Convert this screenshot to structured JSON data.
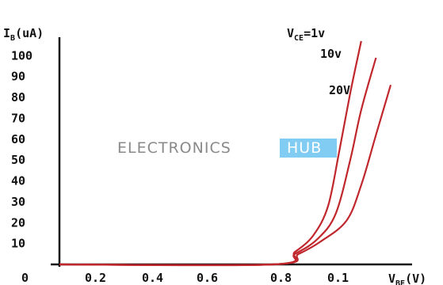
{
  "chart_data": {
    "type": "line",
    "y_axis": {
      "label_main": "I",
      "label_sub": "B",
      "label_unit": "(uA)",
      "ticks": [
        "0",
        "10",
        "20",
        "30",
        "40",
        "50",
        "60",
        "70",
        "80",
        "90",
        "100"
      ]
    },
    "x_axis": {
      "label_main": "V",
      "label_sub": "BE",
      "label_unit": "(V)",
      "ticks": [
        "0.2",
        "0.4",
        "0.6",
        "0.8",
        "0.1"
      ]
    },
    "xlim": [
      0,
      1.04
    ],
    "ylim": [
      0,
      110
    ],
    "grid": false,
    "series": [
      {
        "name_main": "V",
        "name_sub": "CE",
        "name_value": "=1v",
        "points": [
          [
            0,
            0
          ],
          [
            0.58,
            0
          ],
          [
            0.64,
            6
          ],
          [
            0.69,
            14
          ],
          [
            0.73,
            28
          ],
          [
            0.76,
            54
          ],
          [
            0.79,
            82
          ],
          [
            0.82,
            107
          ]
        ]
      },
      {
        "name_main": "",
        "name_sub": "",
        "name_value": "10v",
        "points": [
          [
            0,
            0
          ],
          [
            0.58,
            0
          ],
          [
            0.64,
            5
          ],
          [
            0.7,
            12
          ],
          [
            0.75,
            24
          ],
          [
            0.79,
            50
          ],
          [
            0.82,
            74
          ],
          [
            0.86,
            99
          ]
        ]
      },
      {
        "name_main": "",
        "name_sub": "",
        "name_value": "20V",
        "points": [
          [
            0,
            0
          ],
          [
            0.58,
            0
          ],
          [
            0.65,
            5
          ],
          [
            0.71,
            11
          ],
          [
            0.78,
            21
          ],
          [
            0.82,
            38
          ],
          [
            0.86,
            62
          ],
          [
            0.9,
            86
          ]
        ]
      }
    ],
    "colors": {
      "curve": "#c0272d",
      "axis": "#111111",
      "watermark_text": "#8a8a8a",
      "watermark_box": "#1aa3e8"
    },
    "watermark": {
      "left": "ELECTRONICS",
      "right": "HUB"
    }
  }
}
